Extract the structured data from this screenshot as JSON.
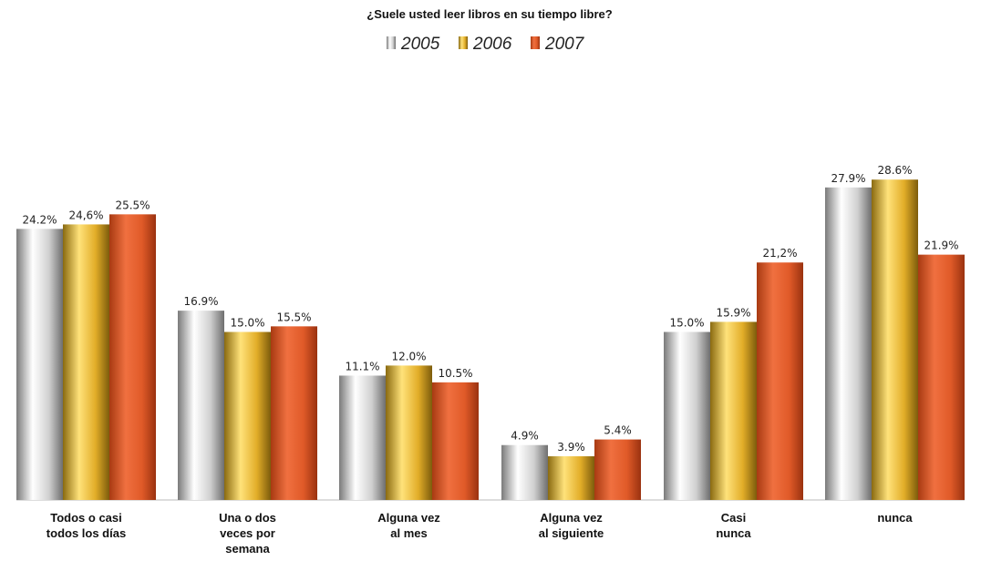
{
  "chart_data": {
    "type": "bar",
    "title": "¿Suele usted leer libros en su tiempo libre?",
    "categories": [
      [
        "Todos o casi",
        "todos los días"
      ],
      [
        "Una o dos",
        "veces por",
        "semana"
      ],
      [
        "Alguna vez",
        "al mes"
      ],
      [
        "Alguna vez",
        "al siguiente"
      ],
      [
        "Casi",
        "nunca"
      ],
      [
        "nunca"
      ]
    ],
    "series": [
      {
        "name": "2005",
        "values": [
          24.2,
          16.9,
          11.1,
          4.9,
          15.0,
          27.9
        ],
        "labels": [
          "24.2%",
          "16.9%",
          "11.1%",
          "4.9%",
          "15.0%",
          "27.9%"
        ],
        "color": "#c8c8c8"
      },
      {
        "name": "2006",
        "values": [
          24.6,
          15.0,
          12.0,
          3.9,
          15.9,
          28.6
        ],
        "labels": [
          "24,6%",
          "15.0%",
          "12.0%",
          "3.9%",
          "15.9%",
          "28.6%"
        ],
        "color": "#e8b830"
      },
      {
        "name": "2007",
        "values": [
          25.5,
          15.5,
          10.5,
          5.4,
          21.2,
          21.9
        ],
        "labels": [
          "25.5%",
          "15.5%",
          "10.5%",
          "5.4%",
          "21,2%",
          "21.9%"
        ],
        "color": "#e05a28"
      }
    ],
    "legend_position": "top-center",
    "grid": false
  }
}
